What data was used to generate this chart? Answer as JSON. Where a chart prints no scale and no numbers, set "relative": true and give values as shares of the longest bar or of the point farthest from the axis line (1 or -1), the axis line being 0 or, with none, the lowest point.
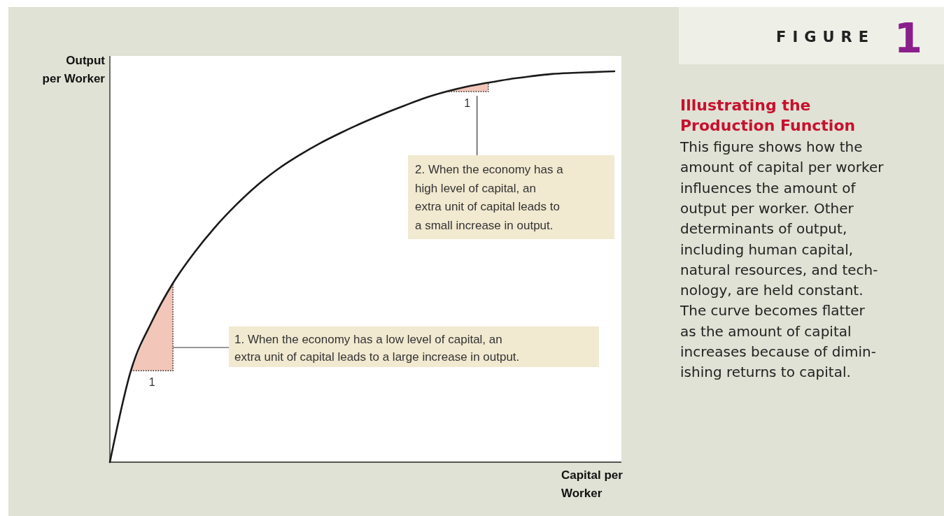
{
  "chart_data": {
    "type": "line",
    "relative": true,
    "title": "Illustrating the\nProduction Function",
    "subtitle": "This figure shows how the\namount of capital per worker\ninfluences the amount of\noutput per worker. Other\ndeterminants of output,\nincluding human capital,\nnatural resources, and tech-\nnology, are held constant.\nThe curve becomes flatter\nas the amount of capital\nincreases because of dimin-\nishing returns to capital.",
    "xlabel": "Capital per\nWorker",
    "ylabel": "Output\nper Worker",
    "categories": [
      null,
      null,
      null,
      null,
      null,
      null,
      null,
      null,
      null,
      null,
      null,
      null,
      null,
      null,
      null,
      null,
      null,
      null,
      null,
      null,
      null,
      null,
      null,
      null,
      null
    ],
    "series": [
      {
        "color": "#1a1a1a",
        "values": [
          0,
          0.234,
          0.36,
          0.458,
          0.535,
          0.601,
          0.658,
          0.708,
          0.75,
          0.785,
          0.816,
          0.843,
          0.868,
          0.891,
          0.912,
          0.932,
          0.948,
          0.961,
          0.971,
          0.98,
          0.987,
          0.993,
          0.996,
          0.998,
          1
        ]
      }
    ],
    "annotations": [
      "FIGURE 1",
      "1",
      "1",
      "1. When the economy has a low level of capital, an\nextra unit of capital leads to a large increase in output.",
      "2. When the economy has a\nhigh level of capital, an\nextra unit of capital leads to\na small increase in output."
    ]
  }
}
